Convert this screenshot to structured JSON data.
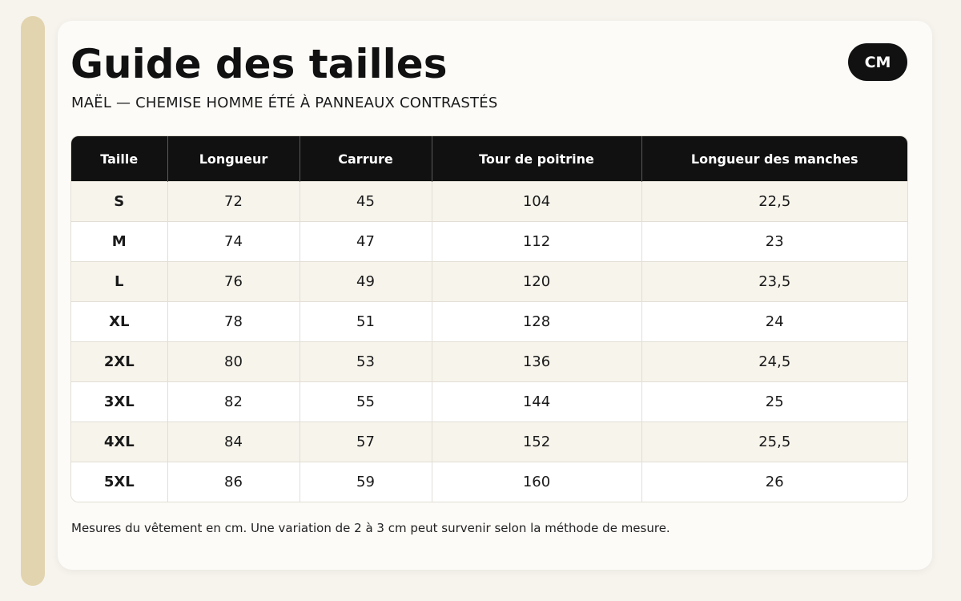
{
  "title": "Guide des tailles",
  "subtitle": "MAËL — CHEMISE HOMME ÉTÉ À PANNEAUX CONTRASTÉS",
  "unit_badge": "CM",
  "table": {
    "headers": [
      "Taille",
      "Longueur",
      "Carrure",
      "Tour de poitrine",
      "Longueur des manches"
    ],
    "rows": [
      [
        "S",
        "72",
        "45",
        "104",
        "22,5"
      ],
      [
        "M",
        "74",
        "47",
        "112",
        "23"
      ],
      [
        "L",
        "76",
        "49",
        "120",
        "23,5"
      ],
      [
        "XL",
        "78",
        "51",
        "128",
        "24"
      ],
      [
        "2XL",
        "80",
        "53",
        "136",
        "24,5"
      ],
      [
        "3XL",
        "82",
        "55",
        "144",
        "25"
      ],
      [
        "4XL",
        "84",
        "57",
        "152",
        "25,5"
      ],
      [
        "5XL",
        "86",
        "59",
        "160",
        "26"
      ]
    ]
  },
  "note": "Mesures du vêtement en cm. Une variation de 2 à 3 cm peut survenir selon la méthode de mesure.",
  "colors": {
    "accent_bar": "#e2d4ae",
    "header_bg": "#111111",
    "row_alt": "#f7f4ec"
  }
}
